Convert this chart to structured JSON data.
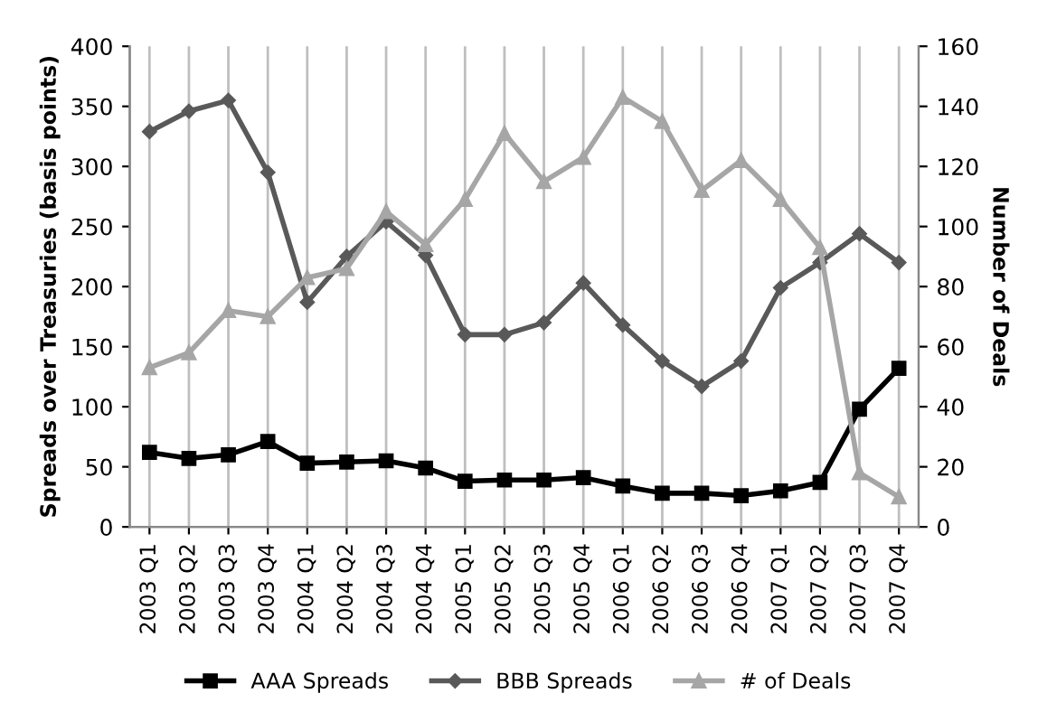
{
  "chart_data": {
    "type": "line",
    "categories": [
      "2003 Q1",
      "2003 Q2",
      "2003 Q3",
      "2003 Q4",
      "2004 Q1",
      "2004 Q2",
      "2004 Q3",
      "2004 Q4",
      "2005 Q1",
      "2005 Q2",
      "2005 Q3",
      "2005 Q4",
      "2006 Q1",
      "2006 Q2",
      "2006 Q3",
      "2006 Q4",
      "2007 Q1",
      "2007 Q2",
      "2007 Q3",
      "2007 Q4"
    ],
    "series": [
      {
        "name": "AAA Spreads",
        "color": "#000000",
        "marker": "square",
        "values": [
          62,
          57,
          60,
          71,
          53,
          54,
          55,
          49,
          38,
          39,
          39,
          41,
          34,
          28,
          28,
          26,
          30,
          37,
          98,
          132
        ]
      },
      {
        "name": "BBB Spreads",
        "color": "#595959",
        "marker": "diamond",
        "values": [
          329,
          346,
          355,
          295,
          187,
          225,
          254,
          226,
          160,
          160,
          170,
          203,
          168,
          138,
          117,
          138,
          199,
          220,
          244,
          220
        ]
      },
      {
        "name": "# of Deals",
        "color": "#a6a6a6",
        "marker": "triangle",
        "axis": "y2",
        "values": [
          53,
          58,
          72,
          70,
          83,
          86,
          105,
          94,
          109,
          131,
          115,
          123,
          143,
          135,
          112,
          122,
          109,
          93,
          18,
          10
        ]
      }
    ],
    "ylabel": "Spreads over Treasuries (basis points)",
    "y2label": "Number of Deals",
    "ylim": [
      0,
      400
    ],
    "yticks": [
      0,
      50,
      100,
      150,
      200,
      250,
      300,
      350,
      400
    ],
    "y2lim": [
      0,
      160
    ],
    "y2ticks": [
      0,
      20,
      40,
      60,
      80,
      100,
      120,
      140,
      160
    ],
    "grid": "x",
    "legend": "bottom",
    "line_style": "solid"
  }
}
